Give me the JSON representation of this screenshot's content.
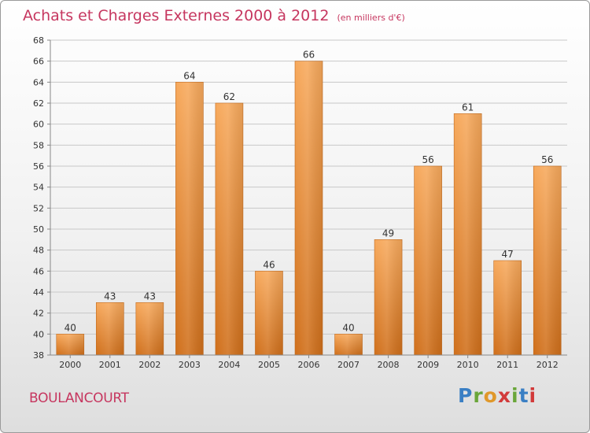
{
  "title": "Achats et Charges Externes 2000 à 2012",
  "subtitle": "(en milliers d'€)",
  "commune": "BOULANCOURT",
  "logo": {
    "text": "Proxiti",
    "colors": [
      "#3a7fc4",
      "#6aa63a",
      "#e0982a",
      "#d23a3a",
      "#6aa63a",
      "#3a7fc4",
      "#d23a3a"
    ]
  },
  "chart_data": {
    "type": "bar",
    "title": "Achats et Charges Externes 2000 à 2012",
    "subtitle": "(en milliers d'€)",
    "xlabel": "",
    "ylabel": "",
    "categories": [
      "2000",
      "2001",
      "2002",
      "2003",
      "2004",
      "2005",
      "2006",
      "2007",
      "2008",
      "2009",
      "2010",
      "2011",
      "2012"
    ],
    "values": [
      40,
      43,
      43,
      64,
      62,
      46,
      66,
      40,
      49,
      56,
      61,
      47,
      56
    ],
    "ylim": [
      38,
      68
    ],
    "yticks": [
      38,
      40,
      42,
      44,
      46,
      48,
      50,
      52,
      54,
      56,
      58,
      60,
      62,
      64,
      66,
      68
    ],
    "grid": "horizontal",
    "bar_color": "#e8883a",
    "data_labels": true
  }
}
